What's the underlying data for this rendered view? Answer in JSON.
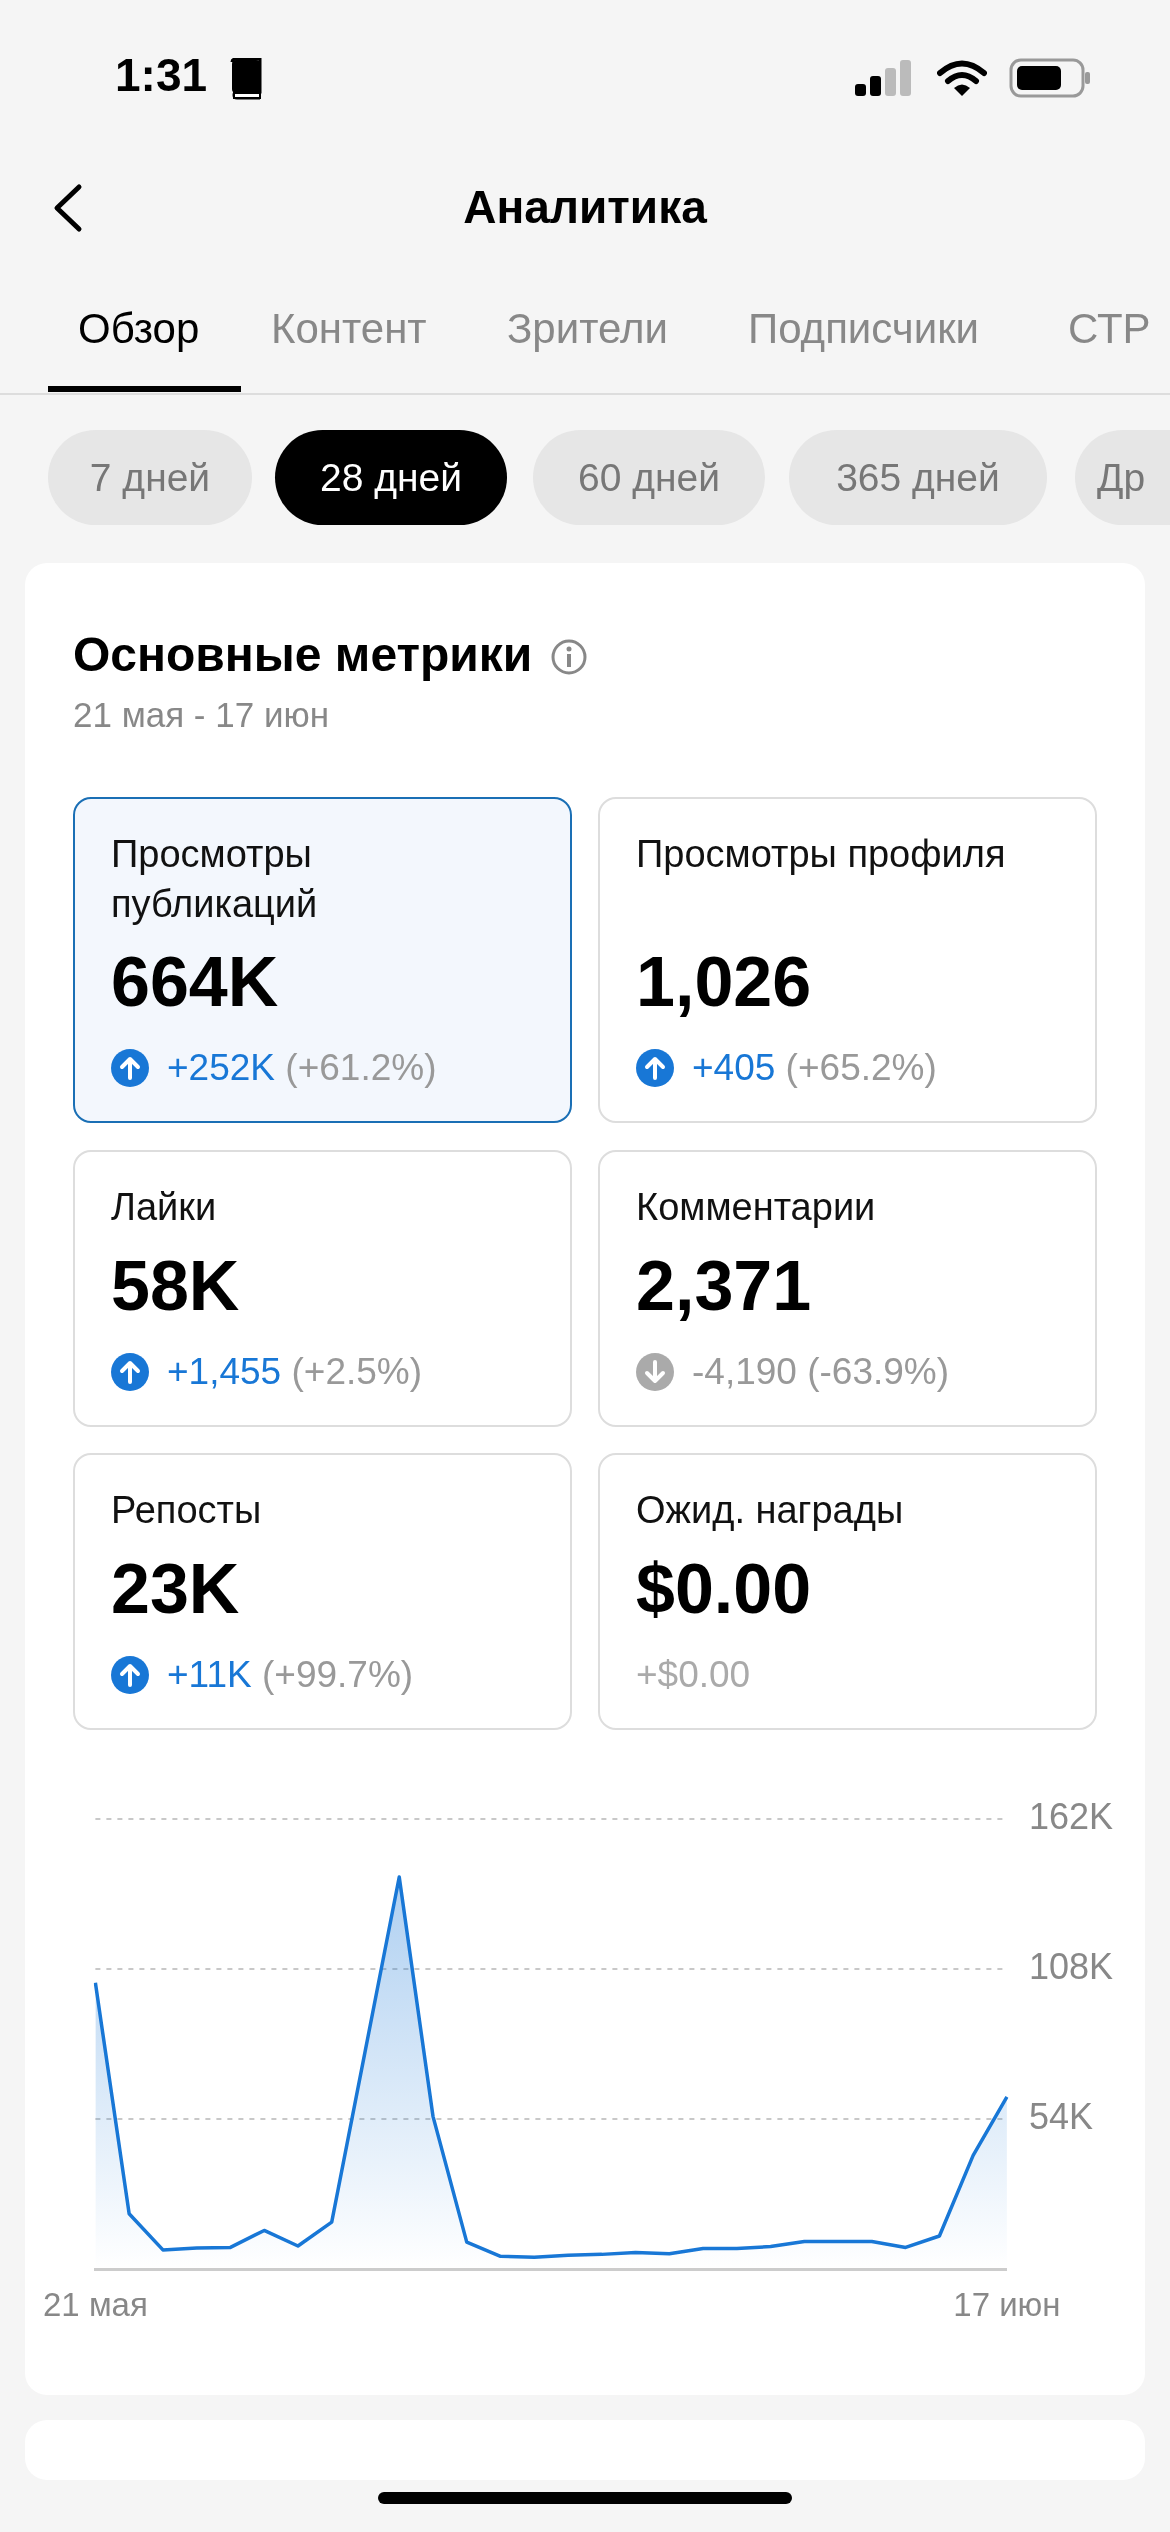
{
  "chart_data": [
    {
      "type": "other",
      "title": "Основные метрики",
      "subtitle": "21 мая - 17 июн",
      "annotations": [
        "1:31",
        "Аналитика",
        "Обзор",
        "Контент",
        "Зрители",
        "Подписчики",
        "СТР",
        "7 дней",
        "28 дней",
        "60 дней",
        "365 дней",
        "Др",
        "Просмотры публикаций",
        "664K",
        "+252K (+61.2%)",
        "Просмотры профиля",
        "1,026",
        "+405 (+65.2%)",
        "Лайки",
        "58K",
        "+1,455 (+2.5%)",
        "Комментарии",
        "2,371",
        "-4,190 (-63.9%)",
        "Репосты",
        "23K",
        "+11K (+99.7%)",
        "Ожид. награды",
        "$0.00",
        "+$0.00"
      ]
    },
    {
      "type": "area",
      "categories": [
        "21 мая",
        null,
        null,
        null,
        null,
        null,
        null,
        null,
        null,
        null,
        null,
        null,
        null,
        null,
        null,
        null,
        null,
        null,
        null,
        null,
        null,
        null,
        null,
        null,
        null,
        null,
        null,
        "17 июн"
      ],
      "series": [
        {
          "color": "#1877d6",
          "values": [
            103,
            20,
            7.0,
            7.7,
            7.9,
            14,
            8.4,
            17,
            79,
            141,
            55,
            9.8,
            4.7,
            4.4,
            5.1,
            5.4,
            6.1,
            5.6,
            7.5,
            7.5,
            8.2,
            10,
            10,
            10,
            7.9,
            12,
            41,
            62
          ]
        }
      ],
      "ylim": [
        0,
        162
      ],
      "yticks": [
        {
          "value": 0,
          "label": null
        },
        {
          "value": 54,
          "label": "54K"
        },
        {
          "value": 108,
          "label": "108K"
        },
        {
          "value": 162,
          "label": "162K"
        }
      ],
      "grid": "y",
      "marker": "none"
    }
  ]
}
